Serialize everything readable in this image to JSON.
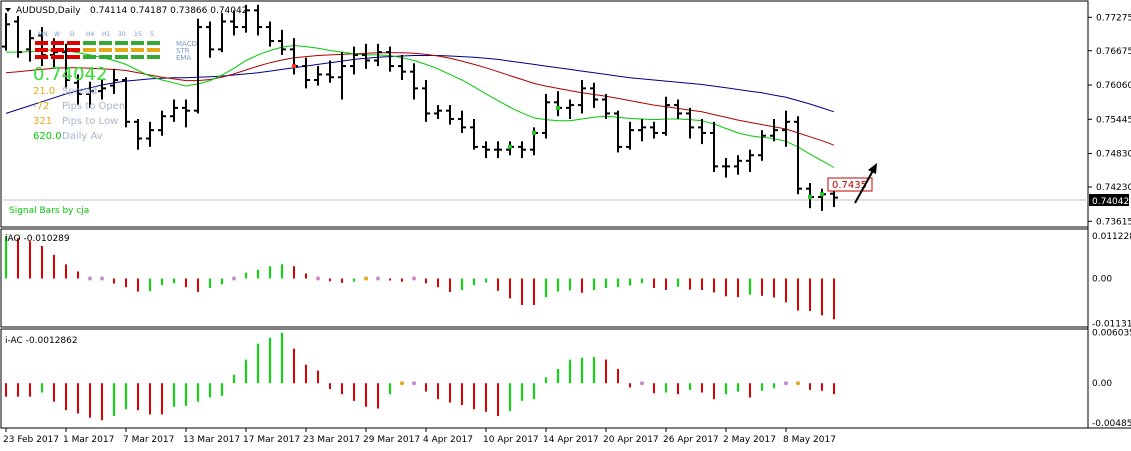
{
  "window": {
    "symbol_title": "AUDUSD,Daily",
    "ohlc": "0.74114 0.74187 0.73866 0.74042"
  },
  "signal_bars": {
    "timeframes": [
      "MN",
      "W",
      "D",
      "H4",
      "H1",
      "30",
      "15",
      "5"
    ],
    "indicators": [
      "MACD",
      "STR",
      "EMA"
    ],
    "price": "0.74042",
    "rows": [
      {
        "value": "21.0",
        "label": "Spread",
        "color": "#e6a817"
      },
      {
        "value": "-72",
        "label": "Pips to Open",
        "color": "#e6a817"
      },
      {
        "value": "321",
        "label": "Pips to Low",
        "color": "#e6a817"
      },
      {
        "value": "620.0",
        "label": "Daily Av",
        "color": "#00cc00"
      }
    ],
    "footer": "Signal Bars by cja"
  },
  "main_panel": {
    "price_labels": [
      "0.77275",
      "0.76675",
      "0.76060",
      "0.75445",
      "0.74830",
      "0.74230",
      "0.73615"
    ],
    "current_price": "0.74042",
    "annotation": "0.7435"
  },
  "iao_panel": {
    "title": "iAO -0.010289",
    "axis_labels": [
      "0.011228",
      "0.00",
      "-0.011314"
    ]
  },
  "iac_panel": {
    "title": "i-AC -0.0012862",
    "axis_labels": [
      "0.006035",
      "0.00",
      "-0.004856"
    ]
  },
  "time_axis": {
    "labels": [
      "23 Feb 2017",
      "1 Mar 2017",
      "7 Mar 2017",
      "13 Mar 2017",
      "17 Mar 2017",
      "23 Mar 2017",
      "29 Mar 2017",
      "4 Apr 2017",
      "10 Apr 2017",
      "14 Apr 2017",
      "20 Apr 2017",
      "26 Apr 2017",
      "2 May 2017",
      "8 May 2017"
    ]
  },
  "chart_data": {
    "type": "ohlc",
    "symbol": "AUDUSD",
    "timeframe": "Daily",
    "bars": [
      {
        "o": 0.7675,
        "h": 0.7735,
        "l": 0.7668,
        "c": 0.7715
      },
      {
        "o": 0.772,
        "h": 0.773,
        "l": 0.7655,
        "c": 0.7665
      },
      {
        "o": 0.767,
        "h": 0.7705,
        "l": 0.7648,
        "c": 0.769
      },
      {
        "o": 0.7695,
        "h": 0.771,
        "l": 0.764,
        "c": 0.766
      },
      {
        "o": 0.766,
        "h": 0.769,
        "l": 0.7635,
        "c": 0.7665
      },
      {
        "o": 0.7665,
        "h": 0.768,
        "l": 0.76,
        "c": 0.7615
      },
      {
        "o": 0.761,
        "h": 0.7625,
        "l": 0.757,
        "c": 0.759
      },
      {
        "o": 0.759,
        "h": 0.7612,
        "l": 0.7565,
        "c": 0.7595
      },
      {
        "o": 0.7595,
        "h": 0.7615,
        "l": 0.758,
        "c": 0.76
      },
      {
        "o": 0.7605,
        "h": 0.7635,
        "l": 0.759,
        "c": 0.7615
      },
      {
        "o": 0.7615,
        "h": 0.762,
        "l": 0.753,
        "c": 0.754
      },
      {
        "o": 0.754,
        "h": 0.7545,
        "l": 0.749,
        "c": 0.751
      },
      {
        "o": 0.751,
        "h": 0.754,
        "l": 0.7495,
        "c": 0.7525
      },
      {
        "o": 0.7525,
        "h": 0.756,
        "l": 0.7515,
        "c": 0.755
      },
      {
        "o": 0.755,
        "h": 0.758,
        "l": 0.754,
        "c": 0.7565
      },
      {
        "o": 0.7565,
        "h": 0.758,
        "l": 0.753,
        "c": 0.756
      },
      {
        "o": 0.756,
        "h": 0.7725,
        "l": 0.7555,
        "c": 0.771
      },
      {
        "o": 0.771,
        "h": 0.772,
        "l": 0.7655,
        "c": 0.767
      },
      {
        "o": 0.767,
        "h": 0.7735,
        "l": 0.7665,
        "c": 0.772
      },
      {
        "o": 0.772,
        "h": 0.774,
        "l": 0.7695,
        "c": 0.771
      },
      {
        "o": 0.771,
        "h": 0.775,
        "l": 0.77,
        "c": 0.774
      },
      {
        "o": 0.774,
        "h": 0.775,
        "l": 0.7695,
        "c": 0.771
      },
      {
        "o": 0.771,
        "h": 0.772,
        "l": 0.7675,
        "c": 0.7685
      },
      {
        "o": 0.7685,
        "h": 0.7705,
        "l": 0.766,
        "c": 0.767
      },
      {
        "o": 0.767,
        "h": 0.769,
        "l": 0.7625,
        "c": 0.764
      },
      {
        "o": 0.764,
        "h": 0.7655,
        "l": 0.76,
        "c": 0.7615
      },
      {
        "o": 0.7615,
        "h": 0.764,
        "l": 0.7605,
        "c": 0.7625
      },
      {
        "o": 0.7625,
        "h": 0.765,
        "l": 0.761,
        "c": 0.762
      },
      {
        "o": 0.762,
        "h": 0.7665,
        "l": 0.758,
        "c": 0.764
      },
      {
        "o": 0.764,
        "h": 0.7675,
        "l": 0.7625,
        "c": 0.766
      },
      {
        "o": 0.766,
        "h": 0.768,
        "l": 0.7635,
        "c": 0.765
      },
      {
        "o": 0.765,
        "h": 0.768,
        "l": 0.764,
        "c": 0.7665
      },
      {
        "o": 0.7665,
        "h": 0.7675,
        "l": 0.763,
        "c": 0.764
      },
      {
        "o": 0.764,
        "h": 0.766,
        "l": 0.7615,
        "c": 0.763
      },
      {
        "o": 0.763,
        "h": 0.7645,
        "l": 0.758,
        "c": 0.76
      },
      {
        "o": 0.76,
        "h": 0.7615,
        "l": 0.754,
        "c": 0.7555
      },
      {
        "o": 0.7555,
        "h": 0.757,
        "l": 0.7545,
        "c": 0.756
      },
      {
        "o": 0.756,
        "h": 0.757,
        "l": 0.7535,
        "c": 0.7545
      },
      {
        "o": 0.7545,
        "h": 0.756,
        "l": 0.752,
        "c": 0.753
      },
      {
        "o": 0.753,
        "h": 0.7545,
        "l": 0.749,
        "c": 0.7495
      },
      {
        "o": 0.7495,
        "h": 0.7505,
        "l": 0.7475,
        "c": 0.749
      },
      {
        "o": 0.749,
        "h": 0.7505,
        "l": 0.7475,
        "c": 0.749
      },
      {
        "o": 0.749,
        "h": 0.7505,
        "l": 0.748,
        "c": 0.7495
      },
      {
        "o": 0.7495,
        "h": 0.7505,
        "l": 0.7475,
        "c": 0.749
      },
      {
        "o": 0.749,
        "h": 0.753,
        "l": 0.748,
        "c": 0.752
      },
      {
        "o": 0.752,
        "h": 0.759,
        "l": 0.751,
        "c": 0.7575
      },
      {
        "o": 0.7575,
        "h": 0.7595,
        "l": 0.755,
        "c": 0.7565
      },
      {
        "o": 0.7565,
        "h": 0.758,
        "l": 0.7545,
        "c": 0.757
      },
      {
        "o": 0.757,
        "h": 0.7615,
        "l": 0.7555,
        "c": 0.76
      },
      {
        "o": 0.76,
        "h": 0.761,
        "l": 0.7565,
        "c": 0.758
      },
      {
        "o": 0.758,
        "h": 0.759,
        "l": 0.7545,
        "c": 0.7555
      },
      {
        "o": 0.7555,
        "h": 0.756,
        "l": 0.7485,
        "c": 0.7495
      },
      {
        "o": 0.7495,
        "h": 0.754,
        "l": 0.749,
        "c": 0.7525
      },
      {
        "o": 0.7525,
        "h": 0.7545,
        "l": 0.7505,
        "c": 0.753
      },
      {
        "o": 0.753,
        "h": 0.754,
        "l": 0.751,
        "c": 0.752
      },
      {
        "o": 0.752,
        "h": 0.7585,
        "l": 0.7515,
        "c": 0.757
      },
      {
        "o": 0.757,
        "h": 0.758,
        "l": 0.7545,
        "c": 0.7555
      },
      {
        "o": 0.7555,
        "h": 0.7565,
        "l": 0.751,
        "c": 0.753
      },
      {
        "o": 0.753,
        "h": 0.7545,
        "l": 0.75,
        "c": 0.752
      },
      {
        "o": 0.752,
        "h": 0.754,
        "l": 0.745,
        "c": 0.746
      },
      {
        "o": 0.746,
        "h": 0.7475,
        "l": 0.744,
        "c": 0.746
      },
      {
        "o": 0.746,
        "h": 0.748,
        "l": 0.7445,
        "c": 0.747
      },
      {
        "o": 0.747,
        "h": 0.749,
        "l": 0.745,
        "c": 0.748
      },
      {
        "o": 0.748,
        "h": 0.7525,
        "l": 0.747,
        "c": 0.7515
      },
      {
        "o": 0.7515,
        "h": 0.7545,
        "l": 0.7505,
        "c": 0.7525
      },
      {
        "o": 0.7525,
        "h": 0.756,
        "l": 0.7495,
        "c": 0.754
      },
      {
        "o": 0.754,
        "h": 0.755,
        "l": 0.741,
        "c": 0.742
      },
      {
        "o": 0.742,
        "h": 0.743,
        "l": 0.7385,
        "c": 0.7405
      },
      {
        "o": 0.7405,
        "h": 0.742,
        "l": 0.738,
        "c": 0.741
      },
      {
        "o": 0.7411,
        "h": 0.7419,
        "l": 0.7387,
        "c": 0.7404
      }
    ],
    "ma_green": [
      0.7665,
      0.7665,
      0.7666,
      0.7668,
      0.7669,
      0.7668,
      0.7664,
      0.766,
      0.7655,
      0.765,
      0.7643,
      0.7632,
      0.7622,
      0.7615,
      0.761,
      0.7604,
      0.7608,
      0.7614,
      0.7624,
      0.7636,
      0.765,
      0.766,
      0.7668,
      0.7674,
      0.7677,
      0.7675,
      0.7672,
      0.7668,
      0.7665,
      0.7662,
      0.766,
      0.766,
      0.7659,
      0.7655,
      0.765,
      0.7643,
      0.7635,
      0.7625,
      0.7615,
      0.7603,
      0.759,
      0.7578,
      0.7566,
      0.7556,
      0.7547,
      0.7544,
      0.7542,
      0.7542,
      0.7545,
      0.7548,
      0.755,
      0.7548,
      0.7546,
      0.7545,
      0.7544,
      0.7545,
      0.7545,
      0.7544,
      0.7542,
      0.7536,
      0.7528,
      0.752,
      0.7515,
      0.7512,
      0.751,
      0.7505,
      0.7495,
      0.7482,
      0.747,
      0.7458
    ],
    "ma_red": [
      0.7628,
      0.763,
      0.7632,
      0.7634,
      0.7636,
      0.7637,
      0.7637,
      0.7636,
      0.7635,
      0.7634,
      0.7632,
      0.7628,
      0.7624,
      0.762,
      0.7617,
      0.7614,
      0.7614,
      0.7616,
      0.762,
      0.7626,
      0.7633,
      0.764,
      0.7646,
      0.7651,
      0.7655,
      0.7657,
      0.7659,
      0.766,
      0.7661,
      0.7662,
      0.7663,
      0.7664,
      0.7664,
      0.7664,
      0.7663,
      0.7661,
      0.7658,
      0.7654,
      0.7649,
      0.7643,
      0.7637,
      0.763,
      0.7623,
      0.7616,
      0.7609,
      0.7604,
      0.76,
      0.7596,
      0.7592,
      0.7589,
      0.7586,
      0.7582,
      0.7578,
      0.7574,
      0.757,
      0.7567,
      0.7564,
      0.7561,
      0.7558,
      0.7553,
      0.7548,
      0.7543,
      0.7539,
      0.7535,
      0.7531,
      0.7527,
      0.752,
      0.7513,
      0.7506,
      0.7498
    ],
    "ma_blue": [
      0.7555,
      0.7562,
      0.7569,
      0.7576,
      0.7583,
      0.759,
      0.7596,
      0.7601,
      0.7606,
      0.761,
      0.7613,
      0.7615,
      0.7617,
      0.7618,
      0.7619,
      0.7619,
      0.762,
      0.7621,
      0.7622,
      0.7624,
      0.7626,
      0.7628,
      0.7631,
      0.7634,
      0.7637,
      0.764,
      0.7643,
      0.7646,
      0.7649,
      0.7652,
      0.7654,
      0.7656,
      0.7657,
      0.7658,
      0.7659,
      0.7659,
      0.7659,
      0.7658,
      0.7657,
      0.7656,
      0.7654,
      0.7652,
      0.7649,
      0.7646,
      0.7643,
      0.764,
      0.7637,
      0.7634,
      0.7631,
      0.7628,
      0.7625,
      0.7622,
      0.7619,
      0.7617,
      0.7615,
      0.7613,
      0.7611,
      0.7609,
      0.7607,
      0.7604,
      0.7601,
      0.7598,
      0.7595,
      0.7592,
      0.7588,
      0.7584,
      0.7578,
      0.7572,
      0.7565,
      0.7558
    ],
    "iao": [
      0.0108,
      0.0102,
      0.0094,
      0.0082,
      0.006,
      0.0036,
      0.0018,
      0.0003,
      0.0003,
      -0.0013,
      -0.0022,
      -0.0033,
      -0.0032,
      -0.0017,
      -0.0012,
      -0.0022,
      -0.0034,
      -0.0024,
      -0.0015,
      0.0003,
      0.0015,
      0.0022,
      0.0031,
      0.0036,
      0.0031,
      0.0013,
      0.0003,
      -0.0007,
      -0.0011,
      -0.0008,
      0.0003,
      0.0002,
      -0.0005,
      -0.0008,
      -0.0003,
      -0.0012,
      -0.0022,
      -0.0034,
      -0.0029,
      -0.0017,
      -0.001,
      -0.0031,
      -0.005,
      -0.0067,
      -0.0067,
      -0.0047,
      -0.0033,
      -0.003,
      -0.0036,
      -0.0029,
      -0.0024,
      -0.0022,
      -0.0018,
      -0.0012,
      -0.0024,
      -0.0029,
      -0.0021,
      -0.0028,
      -0.0029,
      -0.0035,
      -0.0045,
      -0.0047,
      -0.0041,
      -0.0044,
      -0.0048,
      -0.006,
      -0.0081,
      -0.0082,
      -0.0093,
      -0.0103
    ],
    "iac": [
      -0.0016,
      -0.0016,
      -0.0016,
      -0.0011,
      -0.0022,
      -0.0032,
      -0.0036,
      -0.0041,
      -0.0044,
      -0.0039,
      -0.0031,
      -0.0032,
      -0.0037,
      -0.0037,
      -0.0028,
      -0.0027,
      -0.0022,
      -0.0017,
      -0.0015,
      0.001,
      0.0028,
      0.0047,
      0.0054,
      0.006,
      0.0041,
      0.0022,
      0.0015,
      -0.0007,
      -0.0013,
      -0.0021,
      -0.0028,
      -0.003,
      -0.0013,
      0.0003,
      0.0002,
      -0.001,
      -0.0019,
      -0.0023,
      -0.0026,
      -0.0031,
      -0.0034,
      -0.0039,
      -0.0033,
      -0.0021,
      -0.0019,
      0.0007,
      0.0017,
      0.0028,
      0.003,
      0.0031,
      0.0028,
      0.0017,
      -0.0005,
      -0.0004,
      -0.0012,
      -0.0011,
      -0.0013,
      -0.0008,
      -0.0011,
      -0.0019,
      -0.0013,
      -0.001,
      -0.0017,
      -0.0009,
      -0.0006,
      -0.0004,
      -0.0004,
      -0.0008,
      -0.0009,
      -0.0013
    ],
    "annotation_price": 0.7435,
    "ylim_main": [
      0.7353,
      0.7755
    ],
    "ylim_iao": [
      -0.012,
      0.012
    ],
    "ylim_iac": [
      -0.0052,
      0.0062
    ]
  },
  "colors": {
    "bars": "#000000",
    "ma_green": "#00cc00",
    "ma_red": "#b00000",
    "ma_blue": "#00008b",
    "hist_up": "#00e000",
    "hist_down": "#e00000"
  }
}
